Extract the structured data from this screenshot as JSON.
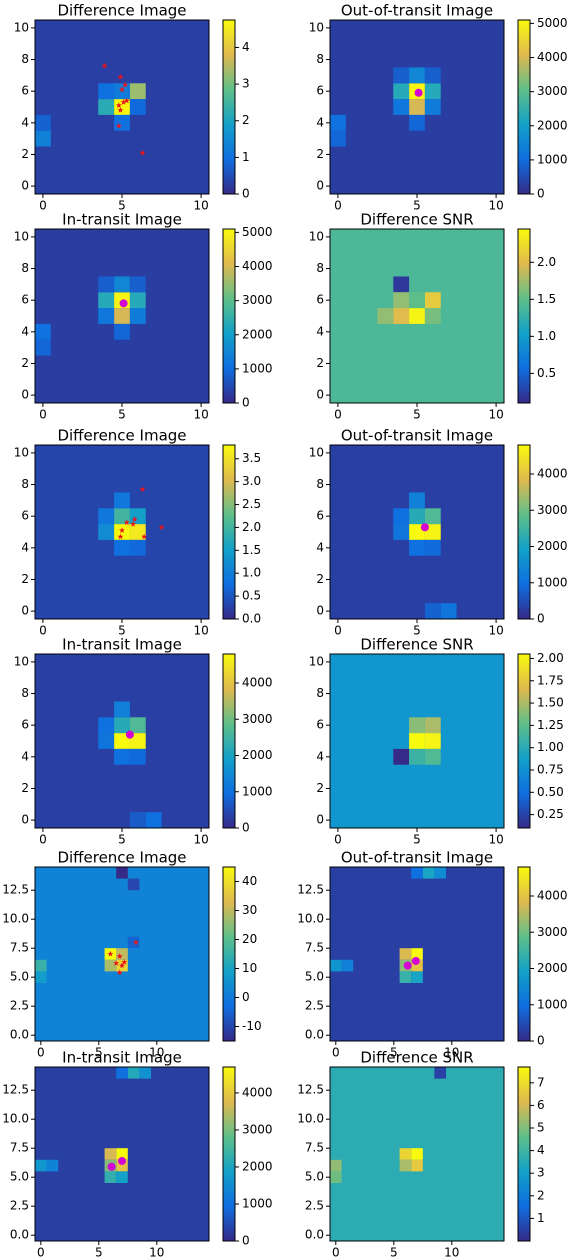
{
  "chart_data": [
    {
      "type": "heatmap",
      "title": "Difference Image",
      "colormap": [
        "#352a87",
        "#0f6ee0",
        "#12a1c8",
        "#5fbf89",
        "#e0b94f",
        "#f9fb0e"
      ],
      "xlim": [
        -0.5,
        10.5
      ],
      "ylim": [
        -0.5,
        10.5
      ],
      "xticks": [
        0,
        5,
        10
      ],
      "yticks": [
        0,
        2,
        4,
        6,
        8,
        10
      ],
      "clim": [
        0,
        4.75
      ],
      "cticks": [
        0,
        1,
        2,
        3,
        4
      ],
      "background": 0.3,
      "cells": [
        [
          5,
          5,
          4.7
        ],
        [
          6,
          6,
          3.3
        ],
        [
          4,
          5,
          2.2
        ],
        [
          5,
          6,
          1.2
        ],
        [
          4,
          6,
          1.0
        ],
        [
          5,
          4,
          1.0
        ],
        [
          0,
          3,
          1.3
        ],
        [
          0,
          4,
          0.8
        ],
        [
          6,
          5,
          0.9
        ]
      ],
      "stars": {
        "x": [
          3.9,
          4.9,
          5.2,
          5.0,
          5.3,
          4.8,
          5.1,
          4.9,
          4.8,
          6.3
        ],
        "y": [
          7.6,
          6.9,
          6.4,
          6.1,
          5.4,
          5.1,
          5.3,
          4.8,
          3.8,
          2.1
        ]
      },
      "centroids": {
        "x": [],
        "y": []
      }
    },
    {
      "type": "heatmap",
      "title": "Out-of-transit Image",
      "colormap": [
        "#352a87",
        "#0f6ee0",
        "#12a1c8",
        "#5fbf89",
        "#e0b94f",
        "#f9fb0e"
      ],
      "xlim": [
        -0.5,
        10.5
      ],
      "ylim": [
        -0.5,
        10.5
      ],
      "xticks": [
        0,
        5,
        10
      ],
      "yticks": [
        0,
        2,
        4,
        6,
        8,
        10
      ],
      "clim": [
        0,
        5100
      ],
      "cticks": [
        0,
        1000,
        2000,
        3000,
        4000,
        5000
      ],
      "background": 300,
      "cells": [
        [
          5,
          6,
          5000
        ],
        [
          5,
          5,
          4000
        ],
        [
          4,
          6,
          2300
        ],
        [
          6,
          6,
          2300
        ],
        [
          5,
          7,
          1500
        ],
        [
          4,
          5,
          1200
        ],
        [
          6,
          5,
          1300
        ],
        [
          5,
          4,
          900
        ],
        [
          4,
          7,
          800
        ],
        [
          6,
          7,
          800
        ],
        [
          0,
          4,
          1100
        ],
        [
          0,
          3,
          900
        ]
      ],
      "stars": {
        "x": [],
        "y": []
      },
      "centroids": {
        "x": [
          5.1
        ],
        "y": [
          5.9
        ]
      }
    },
    {
      "type": "heatmap",
      "title": "In-transit Image",
      "colormap": [
        "#352a87",
        "#0f6ee0",
        "#12a1c8",
        "#5fbf89",
        "#e0b94f",
        "#f9fb0e"
      ],
      "xlim": [
        -0.5,
        10.5
      ],
      "ylim": [
        -0.5,
        10.5
      ],
      "xticks": [
        0,
        5,
        10
      ],
      "yticks": [
        0,
        2,
        4,
        6,
        8,
        10
      ],
      "clim": [
        0,
        5100
      ],
      "cticks": [
        0,
        1000,
        2000,
        3000,
        4000,
        5000
      ],
      "background": 300,
      "cells": [
        [
          5,
          6,
          5000
        ],
        [
          5,
          5,
          4000
        ],
        [
          4,
          6,
          2300
        ],
        [
          6,
          6,
          2300
        ],
        [
          5,
          7,
          1500
        ],
        [
          4,
          5,
          1200
        ],
        [
          6,
          5,
          1300
        ],
        [
          5,
          4,
          900
        ],
        [
          4,
          7,
          800
        ],
        [
          6,
          7,
          800
        ],
        [
          0,
          4,
          1100
        ],
        [
          0,
          3,
          900
        ]
      ],
      "stars": {
        "x": [],
        "y": []
      },
      "centroids": {
        "x": [
          5.1
        ],
        "y": [
          5.8
        ]
      }
    },
    {
      "type": "heatmap",
      "title": "Difference SNR",
      "colormap": [
        "#352a87",
        "#0f6ee0",
        "#12a1c8",
        "#5fbf89",
        "#e0b94f",
        "#f9fb0e"
      ],
      "xlim": [
        -0.5,
        10.5
      ],
      "ylim": [
        -0.5,
        10.5
      ],
      "xticks": [
        0,
        5,
        10
      ],
      "yticks": [
        0,
        2,
        4,
        6,
        8,
        10
      ],
      "clim": [
        0.1,
        2.45
      ],
      "cticks": [
        0.5,
        {
          "value": 1,
          "label": "1.0"
        },
        1.5,
        {
          "value": 2,
          "label": "2.0"
        }
      ],
      "background": 1.4,
      "cells": [
        [
          4,
          7,
          0.2
        ],
        [
          5,
          5,
          2.4
        ],
        [
          4,
          5,
          2.0
        ],
        [
          6,
          6,
          2.1
        ],
        [
          4,
          6,
          1.7
        ],
        [
          5,
          6,
          1.5
        ],
        [
          3,
          5,
          1.7
        ],
        [
          6,
          5,
          1.6
        ]
      ],
      "stars": {
        "x": [],
        "y": []
      },
      "centroids": {
        "x": [],
        "y": []
      }
    },
    {
      "type": "heatmap",
      "title": "Difference Image",
      "colormap": [
        "#352a87",
        "#0f6ee0",
        "#12a1c8",
        "#5fbf89",
        "#e0b94f",
        "#f9fb0e"
      ],
      "xlim": [
        -0.5,
        10.5
      ],
      "ylim": [
        -0.5,
        10.5
      ],
      "xticks": [
        0,
        5,
        10
      ],
      "yticks": [
        0,
        2,
        4,
        6,
        8,
        10
      ],
      "clim": [
        0,
        3.8
      ],
      "cticks": [
        {
          "value": 0,
          "label": "0.0"
        },
        0.5,
        {
          "value": 1,
          "label": "1.0"
        },
        1.5,
        {
          "value": 2,
          "label": "2.0"
        },
        2.5,
        {
          "value": 3,
          "label": "3.0"
        },
        3.5
      ],
      "background": 0.3,
      "cells": [
        [
          5,
          5,
          3.8
        ],
        [
          6,
          5,
          3.6
        ],
        [
          5,
          6,
          2.0
        ],
        [
          6,
          6,
          1.5
        ],
        [
          4,
          5,
          1.2
        ],
        [
          5,
          7,
          0.9
        ],
        [
          4,
          6,
          0.9
        ],
        [
          5,
          4,
          0.8
        ],
        [
          6,
          4,
          0.7
        ]
      ],
      "stars": {
        "x": [
          6.3,
          5.3,
          5.0,
          5.7,
          6.4,
          7.5,
          4.9,
          5.8
        ],
        "y": [
          7.7,
          5.6,
          5.1,
          5.5,
          4.7,
          5.3,
          4.7,
          5.8
        ]
      },
      "centroids": {
        "x": [],
        "y": []
      }
    },
    {
      "type": "heatmap",
      "title": "Out-of-transit Image",
      "colormap": [
        "#352a87",
        "#0f6ee0",
        "#12a1c8",
        "#5fbf89",
        "#e0b94f",
        "#f9fb0e"
      ],
      "xlim": [
        -0.5,
        10.5
      ],
      "ylim": [
        -0.5,
        10.5
      ],
      "xticks": [
        0,
        5,
        10
      ],
      "yticks": [
        0,
        2,
        4,
        6,
        8,
        10
      ],
      "clim": [
        0,
        4800
      ],
      "cticks": [
        0,
        1000,
        2000,
        3000,
        4000
      ],
      "background": 300,
      "cells": [
        [
          5,
          5,
          4800
        ],
        [
          6,
          5,
          4700
        ],
        [
          5,
          6,
          2200
        ],
        [
          6,
          6,
          2700
        ],
        [
          5,
          7,
          1300
        ],
        [
          4,
          5,
          1100
        ],
        [
          4,
          6,
          1000
        ],
        [
          5,
          4,
          1000
        ],
        [
          6,
          4,
          900
        ],
        [
          7,
          0,
          1100
        ],
        [
          6,
          0,
          800
        ]
      ],
      "stars": {
        "x": [],
        "y": []
      },
      "centroids": {
        "x": [
          5.5
        ],
        "y": [
          5.3
        ]
      }
    },
    {
      "type": "heatmap",
      "title": "In-transit Image",
      "colormap": [
        "#352a87",
        "#0f6ee0",
        "#12a1c8",
        "#5fbf89",
        "#e0b94f",
        "#f9fb0e"
      ],
      "xlim": [
        -0.5,
        10.5
      ],
      "ylim": [
        -0.5,
        10.5
      ],
      "xticks": [
        0,
        5,
        10
      ],
      "yticks": [
        0,
        2,
        4,
        6,
        8,
        10
      ],
      "clim": [
        0,
        4800
      ],
      "cticks": [
        0,
        1000,
        2000,
        3000,
        4000
      ],
      "background": 300,
      "cells": [
        [
          5,
          5,
          4800
        ],
        [
          6,
          5,
          4700
        ],
        [
          5,
          6,
          2200
        ],
        [
          6,
          6,
          2700
        ],
        [
          5,
          7,
          1300
        ],
        [
          4,
          5,
          1100
        ],
        [
          4,
          6,
          1000
        ],
        [
          5,
          4,
          1000
        ],
        [
          6,
          4,
          900
        ],
        [
          7,
          0,
          1000
        ],
        [
          6,
          0,
          700
        ]
      ],
      "stars": {
        "x": [],
        "y": []
      },
      "centroids": {
        "x": [
          5.5
        ],
        "y": [
          5.4
        ]
      }
    },
    {
      "type": "heatmap",
      "title": "Difference SNR",
      "colormap": [
        "#352a87",
        "#0f6ee0",
        "#12a1c8",
        "#5fbf89",
        "#e0b94f",
        "#f9fb0e"
      ],
      "xlim": [
        -0.5,
        10.5
      ],
      "ylim": [
        -0.5,
        10.5
      ],
      "xticks": [
        0,
        5,
        10
      ],
      "yticks": [
        0,
        2,
        4,
        6,
        8,
        10
      ],
      "clim": [
        0.1,
        2.05
      ],
      "cticks": [
        0.25,
        {
          "value": 0.5,
          "label": "0.50"
        },
        0.75,
        {
          "value": 1,
          "label": "1.00"
        },
        1.25,
        {
          "value": 1.5,
          "label": "1.50"
        },
        1.75,
        {
          "value": 2,
          "label": "2.00"
        }
      ],
      "background": 0.8,
      "cells": [
        [
          5,
          5,
          2.05
        ],
        [
          6,
          5,
          2.0
        ],
        [
          6,
          6,
          1.5
        ],
        [
          5,
          6,
          1.4
        ],
        [
          4,
          4,
          0.1
        ],
        [
          6,
          4,
          1.2
        ],
        [
          5,
          4,
          1.1
        ]
      ],
      "stars": {
        "x": [],
        "y": []
      },
      "centroids": {
        "x": [],
        "y": []
      }
    },
    {
      "type": "heatmap",
      "title": "Difference Image",
      "colormap": [
        "#352a87",
        "#0f6ee0",
        "#12a1c8",
        "#5fbf89",
        "#e0b94f",
        "#f9fb0e"
      ],
      "xlim": [
        -0.5,
        14.5
      ],
      "ylim": [
        -0.5,
        14.5
      ],
      "xticks": [
        0,
        5,
        10
      ],
      "yticks": [
        {
          "value": 0,
          "label": "0.0"
        },
        2.5,
        {
          "value": 5,
          "label": "5.0"
        },
        7.5,
        {
          "value": 10,
          "label": "10.0"
        },
        12.5
      ],
      "clim": [
        -15,
        45
      ],
      "cticks": [
        -10,
        0,
        10,
        20,
        30,
        40
      ],
      "background": 2,
      "cells": [
        [
          6,
          7,
          45
        ],
        [
          7,
          7,
          30
        ],
        [
          6,
          6,
          28
        ],
        [
          7,
          6,
          38
        ],
        [
          0,
          6,
          15
        ],
        [
          0,
          5,
          8
        ],
        [
          8,
          8,
          -5
        ],
        [
          7,
          14,
          -15
        ],
        [
          8,
          13,
          -10
        ]
      ],
      "stars": {
        "x": [
          6.0,
          8.2,
          6.8,
          7.0,
          6.8,
          7.2,
          6.5
        ],
        "y": [
          7.0,
          8.0,
          6.8,
          6.0,
          5.4,
          6.3,
          6.2
        ]
      },
      "centroids": {
        "x": [],
        "y": []
      }
    },
    {
      "type": "heatmap",
      "title": "Out-of-transit Image",
      "colormap": [
        "#352a87",
        "#0f6ee0",
        "#12a1c8",
        "#5fbf89",
        "#e0b94f",
        "#f9fb0e"
      ],
      "xlim": [
        -0.5,
        14.5
      ],
      "ylim": [
        -0.5,
        14.5
      ],
      "xticks": [
        0,
        5,
        10
      ],
      "yticks": [
        {
          "value": 0,
          "label": "0.0"
        },
        2.5,
        {
          "value": 5,
          "label": "5.0"
        },
        7.5,
        {
          "value": 10,
          "label": "10.0"
        },
        12.5
      ],
      "clim": [
        0,
        4800
      ],
      "cticks": [
        0,
        1000,
        2000,
        3000,
        4000
      ],
      "background": 300,
      "cells": [
        [
          7,
          7,
          4800
        ],
        [
          6,
          7,
          3800
        ],
        [
          7,
          6,
          4000
        ],
        [
          6,
          6,
          3200
        ],
        [
          6,
          5,
          2400
        ],
        [
          7,
          5,
          2000
        ],
        [
          0,
          6,
          1700
        ],
        [
          1,
          6,
          1300
        ],
        [
          8,
          14,
          2000
        ],
        [
          9,
          14,
          1500
        ],
        [
          7,
          14,
          1000
        ]
      ],
      "stars": {
        "x": [],
        "y": []
      },
      "centroids": {
        "x": [
          6.9,
          6.2
        ],
        "y": [
          6.4,
          6.0
        ]
      }
    },
    {
      "type": "heatmap",
      "title": "In-transit Image",
      "colormap": [
        "#352a87",
        "#0f6ee0",
        "#12a1c8",
        "#5fbf89",
        "#e0b94f",
        "#f9fb0e"
      ],
      "xlim": [
        -0.5,
        14.5
      ],
      "ylim": [
        -0.5,
        14.5
      ],
      "xticks": [
        0,
        5,
        10
      ],
      "yticks": [
        {
          "value": 0,
          "label": "0.0"
        },
        2.5,
        {
          "value": 5,
          "label": "5.0"
        },
        7.5,
        {
          "value": 10,
          "label": "10.0"
        },
        12.5
      ],
      "clim": [
        0,
        4700
      ],
      "cticks": [
        0,
        1000,
        2000,
        3000,
        4000
      ],
      "background": 300,
      "cells": [
        [
          7,
          7,
          4700
        ],
        [
          6,
          7,
          3700
        ],
        [
          7,
          6,
          3900
        ],
        [
          6,
          6,
          3100
        ],
        [
          6,
          5,
          2300
        ],
        [
          7,
          5,
          1900
        ],
        [
          0,
          6,
          1700
        ],
        [
          1,
          6,
          1300
        ],
        [
          8,
          14,
          2100
        ],
        [
          9,
          14,
          1600
        ],
        [
          7,
          14,
          1000
        ]
      ],
      "stars": {
        "x": [],
        "y": []
      },
      "centroids": {
        "x": [
          7.0,
          6.1
        ],
        "y": [
          6.4,
          5.9
        ]
      }
    },
    {
      "type": "heatmap",
      "title": "Difference SNR",
      "colormap": [
        "#352a87",
        "#0f6ee0",
        "#12a1c8",
        "#5fbf89",
        "#e0b94f",
        "#f9fb0e"
      ],
      "xlim": [
        -0.5,
        14.5
      ],
      "ylim": [
        -0.5,
        14.5
      ],
      "xticks": [
        0,
        5,
        10
      ],
      "yticks": [
        {
          "value": 0,
          "label": "0.0"
        },
        2.5,
        {
          "value": 5,
          "label": "5.0"
        },
        7.5,
        {
          "value": 10,
          "label": "10.0"
        },
        12.5
      ],
      "clim": [
        0,
        7.7
      ],
      "cticks": [
        1,
        2,
        3,
        4,
        5,
        6,
        7
      ],
      "background": 3.6,
      "cells": [
        [
          7,
          7,
          7.7
        ],
        [
          6,
          7,
          6.8
        ],
        [
          7,
          6,
          6.5
        ],
        [
          6,
          6,
          5.5
        ],
        [
          9,
          14,
          0.5
        ],
        [
          0,
          6,
          5.2
        ],
        [
          0,
          5,
          4.8
        ]
      ],
      "stars": {
        "x": [],
        "y": []
      },
      "centroids": {
        "x": [],
        "y": []
      }
    }
  ]
}
